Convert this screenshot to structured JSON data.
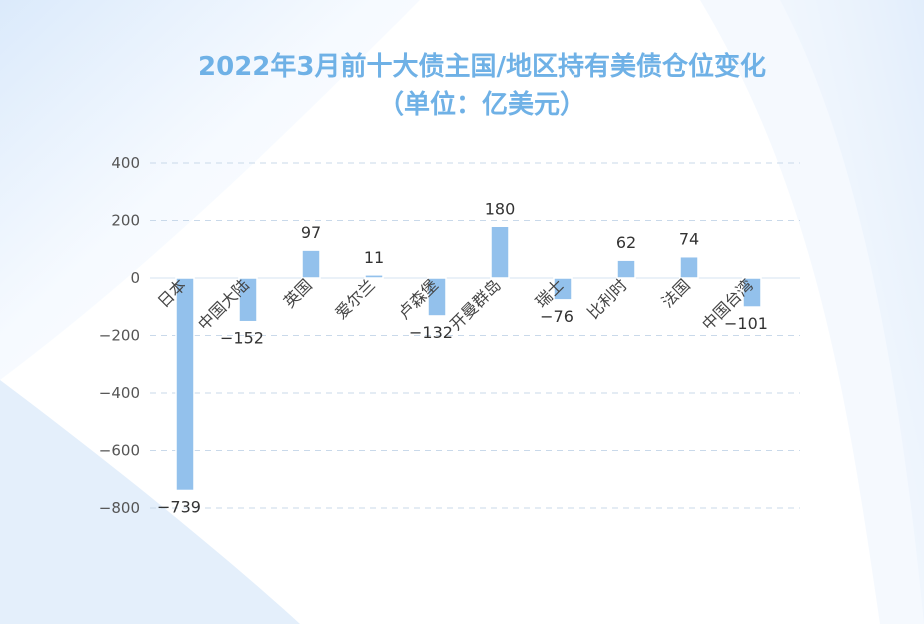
{
  "chart_data": {
    "type": "bar",
    "title": "2022年3月前十大债主国/地区持有美债仓位变化",
    "subtitle": "（单位：亿美元）",
    "xlabel": "",
    "ylabel": "",
    "categories": [
      "日本",
      "中国大陆",
      "英国",
      "爱尔兰",
      "卢森堡",
      "开曼群岛",
      "瑞士",
      "比利时",
      "法国",
      "中国台湾"
    ],
    "values": [
      -739,
      -152,
      97,
      11,
      -132,
      180,
      -76,
      62,
      74,
      -101
    ],
    "value_labels": [
      "−739",
      "−152",
      "97",
      "11",
      "−132",
      "180",
      "−76",
      "62",
      "74",
      "−101"
    ],
    "ylim": [
      -800,
      400
    ],
    "yticks": [
      400,
      200,
      0,
      -200,
      -400,
      -600,
      -800
    ],
    "ytick_labels": [
      "400",
      "200",
      "0",
      "−200",
      "−400",
      "−600",
      "−800"
    ],
    "grid": true,
    "legend": "none",
    "bar_color": "#93c1ec",
    "title_color": "#6fb1e6"
  }
}
